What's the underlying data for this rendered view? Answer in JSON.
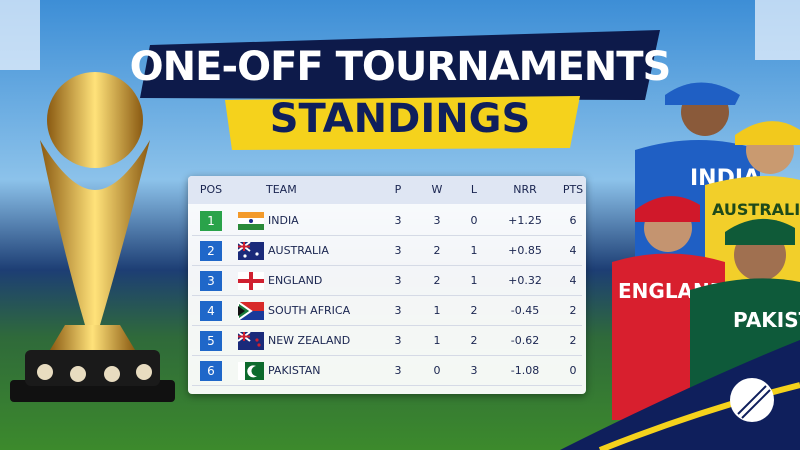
{
  "header": {
    "title": "ONE-OFF TOURNAMENTS",
    "subtitle": "STANDINGS"
  },
  "table": {
    "columns": [
      "POS",
      "TEAM",
      "P",
      "W",
      "L",
      "NRR",
      "PTS"
    ],
    "rows": [
      [
        "1",
        "INDIA",
        "3",
        "3",
        "0",
        "+1.25",
        "6"
      ],
      [
        "2",
        "AUSTRALIA",
        "3",
        "2",
        "1",
        "+0.85",
        "4"
      ],
      [
        "3",
        "ENGLAND",
        "3",
        "2",
        "1",
        "+0.32",
        "4"
      ],
      [
        "4",
        "SOUTH AFRICA",
        "3",
        "1",
        "2",
        "-0.45",
        "2"
      ],
      [
        "5",
        "NEW ZEALAND",
        "3",
        "1",
        "2",
        "-0.62",
        "2"
      ],
      [
        "6",
        "PAKISTAN",
        "3",
        "0",
        "3",
        "-1.08",
        "0"
      ]
    ]
  },
  "players": [
    "INDIA",
    "AUSTRALIA",
    "ENGLAND",
    "PAKISTAN"
  ]
}
